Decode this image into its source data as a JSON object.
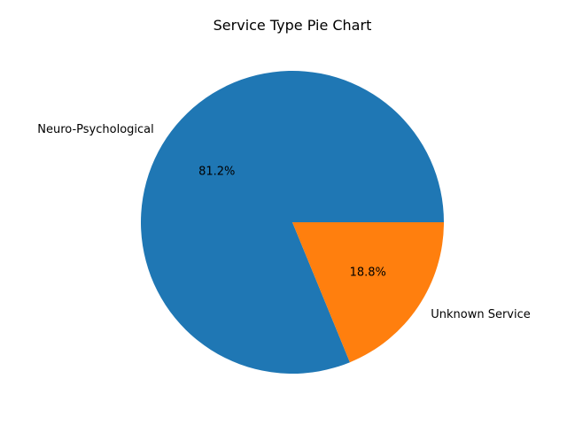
{
  "chart_data": {
    "type": "pie",
    "title": "Service Type Pie Chart",
    "categories": [
      "Neuro-Psychological",
      "Unknown Service"
    ],
    "values": [
      81.2,
      18.8
    ],
    "value_labels": [
      "81.2%",
      "18.8%"
    ],
    "colors": [
      "#1f77b4",
      "#ff7f0e"
    ],
    "start_angle_deg": 0,
    "direction": "counterclockwise",
    "legend": "none"
  }
}
